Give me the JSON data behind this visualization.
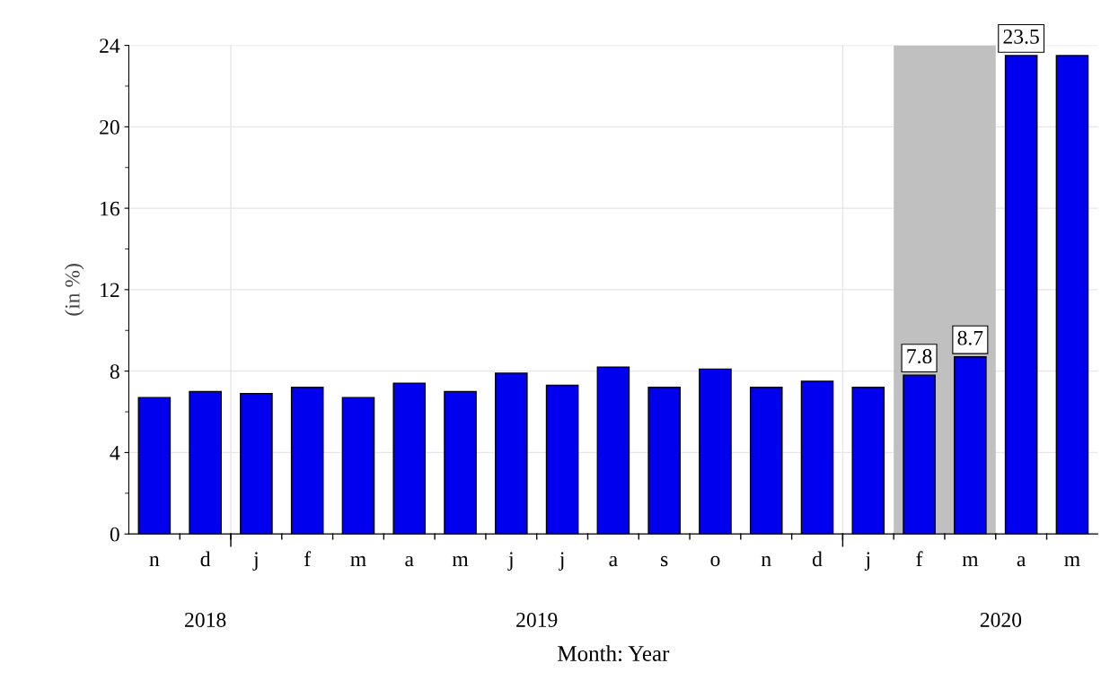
{
  "chart_data": {
    "type": "bar",
    "xlabel": "Month: Year",
    "ylabel": "(in %)",
    "categories": [
      "n",
      "d",
      "j",
      "f",
      "m",
      "a",
      "m",
      "j",
      "j",
      "a",
      "s",
      "o",
      "n",
      "d",
      "j",
      "f",
      "m",
      "a",
      "m"
    ],
    "values": [
      6.7,
      7.0,
      6.9,
      7.2,
      6.7,
      7.4,
      7.0,
      7.9,
      7.3,
      8.2,
      7.2,
      8.1,
      7.2,
      7.5,
      7.2,
      7.8,
      8.7,
      23.5,
      23.5
    ],
    "value_labels": [
      null,
      null,
      null,
      null,
      null,
      null,
      null,
      null,
      null,
      null,
      null,
      null,
      null,
      null,
      null,
      "7.8",
      "8.7",
      "23.5",
      null
    ],
    "color": "#0000ee",
    "ylim": [
      0,
      24
    ],
    "yticks": [
      0,
      4,
      8,
      12,
      16,
      20,
      24
    ],
    "grid": "y",
    "annotations": [
      "2018",
      "2019",
      "2020"
    ]
  }
}
